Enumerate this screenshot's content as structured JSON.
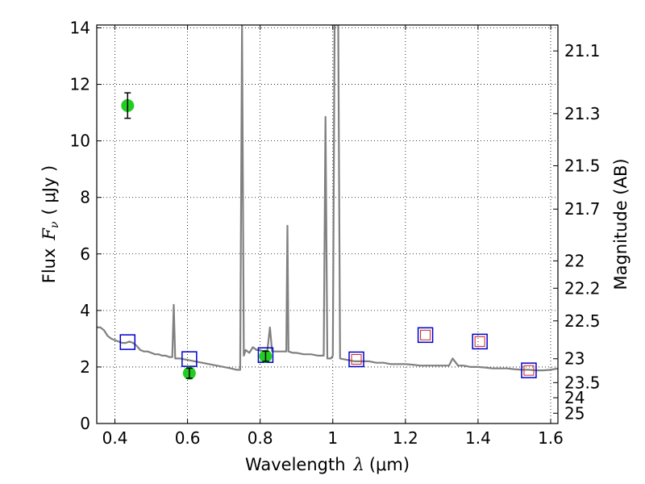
{
  "chart_data": {
    "type": "scatter",
    "title": "",
    "xlabel": "Wavelength",
    "xlabel_symbol": "λ",
    "xlabel_unit": "(μm)",
    "ylabel": "Flux",
    "ylabel_symbol": "F",
    "ylabel_symbol_sub": "ν",
    "ylabel_unit": "( μJy )",
    "y2label": "Magnitude (AB)",
    "xlim": [
      0.35,
      1.62
    ],
    "ylim": [
      0,
      14.1
    ],
    "grid": true,
    "x_ticks": [
      0.4,
      0.6,
      0.8,
      1.0,
      1.2,
      1.4,
      1.6
    ],
    "x_tick_labels": [
      "0.4",
      "0.6",
      "0.8",
      "1",
      "1.2",
      "1.4",
      "1.6"
    ],
    "y_ticks": [
      0,
      2,
      4,
      6,
      8,
      10,
      12,
      14
    ],
    "y_tick_labels": [
      "0",
      "2",
      "4",
      "6",
      "8",
      "10",
      "12",
      "14"
    ],
    "y2_tick_labels": [
      "21.1",
      "21.3",
      "21.5",
      "21.7",
      "22",
      "22.2",
      "22.5",
      "23",
      "23.5",
      "24",
      "25"
    ],
    "colors": {
      "spectrum": "#808080",
      "observed": "#22cc22",
      "model_box": "#0000cc",
      "model_inner": "#cc2222"
    },
    "series": [
      {
        "kind": "spectrum",
        "points": [
          [
            0.35,
            3.4
          ],
          [
            0.36,
            3.4
          ],
          [
            0.37,
            3.3
          ],
          [
            0.38,
            3.1
          ],
          [
            0.39,
            3.0
          ],
          [
            0.4,
            2.95
          ],
          [
            0.41,
            2.9
          ],
          [
            0.42,
            2.85
          ],
          [
            0.43,
            2.85
          ],
          [
            0.44,
            2.9
          ],
          [
            0.45,
            2.85
          ],
          [
            0.46,
            2.75
          ],
          [
            0.47,
            2.6
          ],
          [
            0.48,
            2.55
          ],
          [
            0.49,
            2.55
          ],
          [
            0.5,
            2.5
          ],
          [
            0.51,
            2.45
          ],
          [
            0.52,
            2.45
          ],
          [
            0.53,
            2.4
          ],
          [
            0.54,
            2.4
          ],
          [
            0.55,
            2.35
          ],
          [
            0.558,
            2.35
          ],
          [
            0.562,
            4.2
          ],
          [
            0.566,
            2.3
          ],
          [
            0.58,
            2.3
          ],
          [
            0.6,
            2.25
          ],
          [
            0.62,
            2.2
          ],
          [
            0.64,
            2.15
          ],
          [
            0.66,
            2.1
          ],
          [
            0.68,
            2.05
          ],
          [
            0.7,
            2.0
          ],
          [
            0.72,
            1.95
          ],
          [
            0.735,
            1.9
          ],
          [
            0.745,
            1.9
          ],
          [
            0.75,
            14.1
          ],
          [
            0.755,
            2.4
          ],
          [
            0.76,
            2.6
          ],
          [
            0.77,
            2.5
          ],
          [
            0.78,
            2.7
          ],
          [
            0.79,
            2.6
          ],
          [
            0.8,
            2.6
          ],
          [
            0.81,
            2.55
          ],
          [
            0.82,
            2.6
          ],
          [
            0.827,
            3.4
          ],
          [
            0.833,
            2.55
          ],
          [
            0.85,
            2.55
          ],
          [
            0.86,
            2.55
          ],
          [
            0.872,
            2.55
          ],
          [
            0.875,
            7.0
          ],
          [
            0.878,
            2.55
          ],
          [
            0.89,
            2.5
          ],
          [
            0.9,
            2.5
          ],
          [
            0.92,
            2.45
          ],
          [
            0.94,
            2.45
          ],
          [
            0.96,
            2.4
          ],
          [
            0.975,
            2.4
          ],
          [
            0.98,
            10.85
          ],
          [
            0.985,
            2.3
          ],
          [
            0.995,
            2.3
          ],
          [
            1.0,
            2.4
          ],
          [
            1.005,
            14.1
          ],
          [
            1.015,
            14.1
          ],
          [
            1.02,
            2.3
          ],
          [
            1.04,
            2.25
          ],
          [
            1.06,
            2.2
          ],
          [
            1.08,
            2.2
          ],
          [
            1.1,
            2.2
          ],
          [
            1.12,
            2.15
          ],
          [
            1.14,
            2.15
          ],
          [
            1.16,
            2.1
          ],
          [
            1.18,
            2.1
          ],
          [
            1.2,
            2.1
          ],
          [
            1.22,
            2.08
          ],
          [
            1.24,
            2.05
          ],
          [
            1.26,
            2.05
          ],
          [
            1.28,
            2.05
          ],
          [
            1.3,
            2.05
          ],
          [
            1.32,
            2.05
          ],
          [
            1.33,
            2.3
          ],
          [
            1.345,
            2.05
          ],
          [
            1.36,
            2.05
          ],
          [
            1.38,
            2.0
          ],
          [
            1.4,
            2.0
          ],
          [
            1.42,
            1.98
          ],
          [
            1.44,
            1.95
          ],
          [
            1.46,
            1.95
          ],
          [
            1.48,
            1.95
          ],
          [
            1.5,
            1.92
          ],
          [
            1.52,
            1.9
          ],
          [
            1.54,
            1.9
          ],
          [
            1.56,
            1.88
          ],
          [
            1.58,
            1.88
          ],
          [
            1.6,
            1.9
          ],
          [
            1.62,
            1.95
          ]
        ]
      },
      {
        "kind": "observed",
        "points": [
          {
            "x": 0.435,
            "y": 11.25,
            "err": 0.45
          },
          {
            "x": 0.605,
            "y": 1.78,
            "err": 0.18
          },
          {
            "x": 0.815,
            "y": 2.38,
            "err": 0.18
          }
        ]
      },
      {
        "kind": "model",
        "points": [
          {
            "x": 0.435,
            "y": 2.88,
            "inner": false
          },
          {
            "x": 0.605,
            "y": 2.28,
            "inner": false
          },
          {
            "x": 0.815,
            "y": 2.42,
            "inner": false
          },
          {
            "x": 1.065,
            "y": 2.27,
            "inner": true
          },
          {
            "x": 1.255,
            "y": 3.13,
            "inner": true
          },
          {
            "x": 1.405,
            "y": 2.9,
            "inner": true
          },
          {
            "x": 1.54,
            "y": 1.88,
            "inner": true
          }
        ]
      }
    ]
  }
}
